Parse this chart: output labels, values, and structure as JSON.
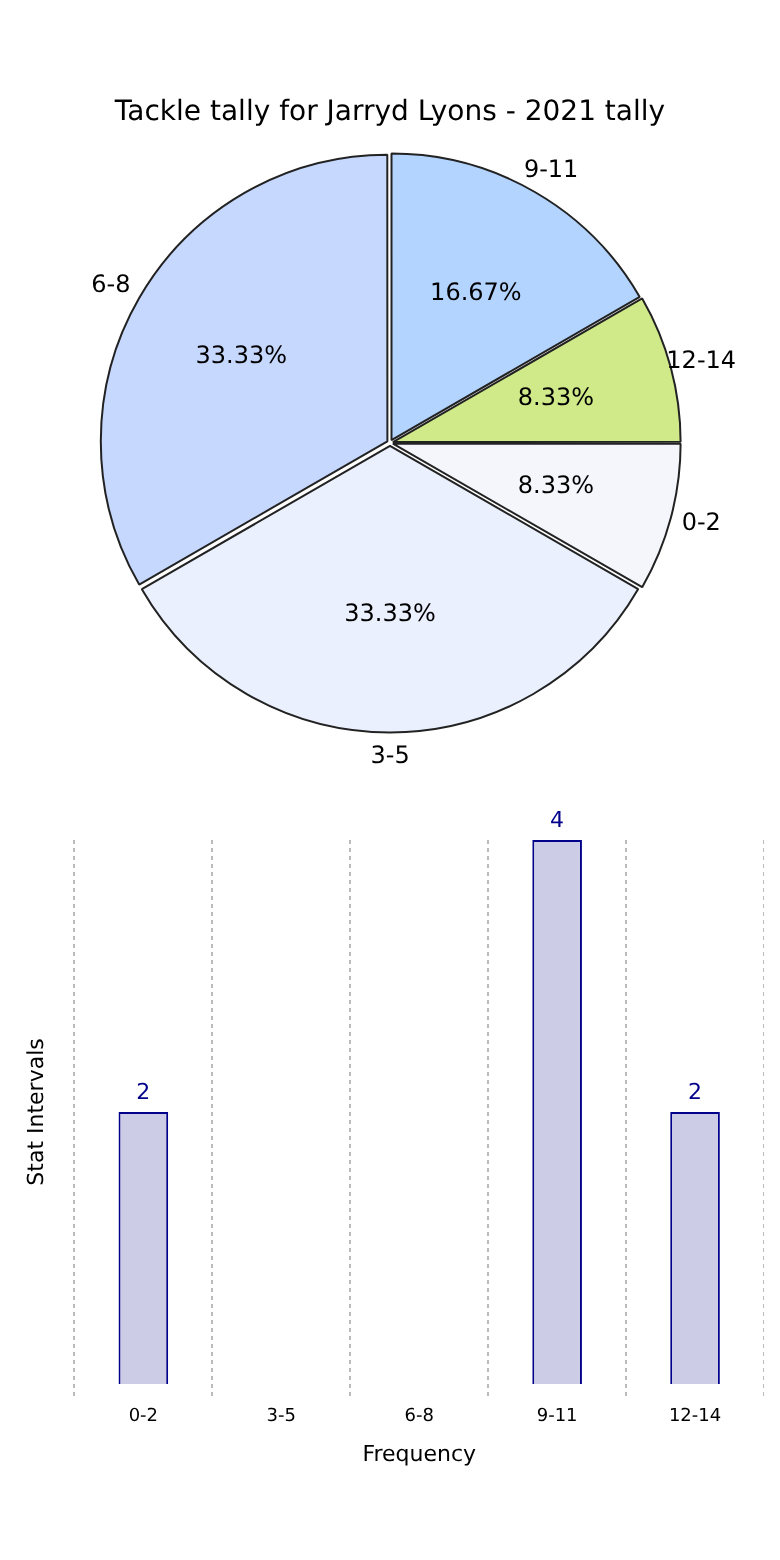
{
  "chart_data": [
    {
      "type": "pie",
      "title": "Tackle tally for Jarryd Lyons - 2021 tally",
      "categories": [
        "0-2",
        "3-5",
        "6-8",
        "9-11",
        "12-14"
      ],
      "values": [
        8.33,
        33.33,
        33.33,
        16.67,
        8.33
      ],
      "value_labels": [
        "8.33%",
        "33.33%",
        "33.33%",
        "16.67%",
        "8.33%"
      ],
      "colors": [
        "#f4f6fb",
        "#eaf0fd",
        "#c6d8fe",
        "#b3d4fe",
        "#d0ea8a"
      ]
    },
    {
      "type": "bar",
      "categories": [
        "0-2",
        "3-5",
        "6-8",
        "9-11",
        "12-14"
      ],
      "values": [
        2,
        null,
        null,
        4,
        2
      ],
      "data_labels": true,
      "color": "#cccce6",
      "xlabel": "Frequency",
      "ylabel": "Stat Intervals",
      "grid": "x"
    }
  ]
}
